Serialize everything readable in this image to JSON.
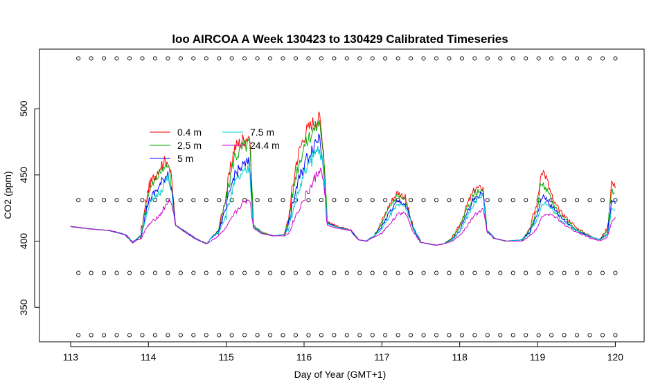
{
  "chart_data": {
    "type": "line",
    "title": "loo AIRCOA A  Week 130423 to 130429  Calibrated Timeseries",
    "xlabel": "Day of Year (GMT+1)",
    "ylabel": "CO2 (ppm)",
    "xlim": [
      112.6,
      120.37
    ],
    "ylim": [
      324,
      545
    ],
    "x_ticks": [
      "113",
      "114",
      "115",
      "116",
      "117",
      "118",
      "119",
      "120"
    ],
    "y_ticks": [
      "350",
      "400",
      "450",
      "500"
    ],
    "legend_position": "top-left",
    "series": [
      {
        "name": "0.4 m",
        "color": "#ff0000",
        "x": [
          113.0,
          113.3,
          113.5,
          113.7,
          113.8,
          113.9,
          114.0,
          114.15,
          114.25,
          114.3,
          114.35,
          114.45,
          114.6,
          114.75,
          114.8,
          114.9,
          115.0,
          115.1,
          115.2,
          115.3,
          115.35,
          115.45,
          115.6,
          115.75,
          115.8,
          115.9,
          116.0,
          116.1,
          116.2,
          116.25,
          116.3,
          116.4,
          116.6,
          116.7,
          116.8,
          116.9,
          117.0,
          117.1,
          117.2,
          117.3,
          117.4,
          117.5,
          117.7,
          117.8,
          117.9,
          118.0,
          118.1,
          118.2,
          118.3,
          118.35,
          118.45,
          118.6,
          118.8,
          118.9,
          119.0,
          119.05,
          119.1,
          119.2,
          119.3,
          119.5,
          119.7,
          119.8,
          119.9,
          119.95,
          120.0
        ],
        "values": [
          411,
          409,
          408,
          405,
          399,
          404,
          440,
          457,
          462,
          445,
          412,
          408,
          402,
          398,
          402,
          408,
          435,
          470,
          476,
          480,
          412,
          407,
          404,
          405,
          418,
          460,
          480,
          489,
          493,
          470,
          415,
          412,
          408,
          401,
          400,
          404,
          415,
          428,
          437,
          433,
          410,
          399,
          397,
          398,
          402,
          412,
          428,
          440,
          440,
          408,
          402,
          400,
          401,
          410,
          430,
          455,
          450,
          430,
          422,
          410,
          403,
          401,
          410,
          445,
          440
        ]
      },
      {
        "name": "2.5 m",
        "color": "#00aa00",
        "x": [
          113.0,
          113.3,
          113.5,
          113.7,
          113.8,
          113.9,
          114.0,
          114.15,
          114.25,
          114.3,
          114.35,
          114.45,
          114.6,
          114.75,
          114.8,
          114.9,
          115.0,
          115.1,
          115.2,
          115.3,
          115.35,
          115.45,
          115.6,
          115.75,
          115.8,
          115.9,
          116.0,
          116.1,
          116.2,
          116.25,
          116.3,
          116.4,
          116.6,
          116.7,
          116.8,
          116.9,
          117.0,
          117.1,
          117.2,
          117.3,
          117.4,
          117.5,
          117.7,
          117.8,
          117.9,
          118.0,
          118.1,
          118.2,
          118.3,
          118.35,
          118.45,
          118.6,
          118.8,
          118.9,
          119.0,
          119.05,
          119.1,
          119.2,
          119.3,
          119.5,
          119.7,
          119.8,
          119.9,
          119.95,
          119.99
        ],
        "values": [
          411,
          409,
          408,
          405,
          399,
          404,
          437,
          452,
          458,
          442,
          412,
          408,
          402,
          398,
          402,
          408,
          432,
          463,
          470,
          474,
          412,
          407,
          404,
          405,
          416,
          452,
          472,
          482,
          490,
          466,
          414,
          411,
          408,
          401,
          400,
          404,
          413,
          426,
          435,
          431,
          410,
          399,
          397,
          398,
          402,
          410,
          425,
          437,
          437,
          408,
          402,
          400,
          401,
          408,
          425,
          445,
          440,
          428,
          420,
          409,
          403,
          401,
          408,
          440,
          436
        ]
      },
      {
        "name": "5 m",
        "color": "#0000ff",
        "x": [
          113.0,
          113.3,
          113.5,
          113.7,
          113.8,
          113.9,
          114.0,
          114.15,
          114.25,
          114.3,
          114.35,
          114.45,
          114.6,
          114.75,
          114.8,
          114.9,
          115.0,
          115.1,
          115.2,
          115.3,
          115.35,
          115.45,
          115.6,
          115.75,
          115.8,
          115.9,
          116.0,
          116.1,
          116.2,
          116.25,
          116.3,
          116.4,
          116.6,
          116.7,
          116.8,
          116.9,
          117.0,
          117.1,
          117.2,
          117.3,
          117.4,
          117.5,
          117.7,
          117.8,
          117.9,
          118.0,
          118.1,
          118.2,
          118.3,
          118.35,
          118.45,
          118.6,
          118.8,
          118.9,
          119.0,
          119.05,
          119.1,
          119.2,
          119.3,
          119.5,
          119.7,
          119.8,
          119.9,
          119.95,
          120.0
        ],
        "values": [
          411,
          409,
          408,
          405,
          399,
          404,
          430,
          442,
          452,
          438,
          412,
          408,
          402,
          398,
          402,
          407,
          425,
          450,
          456,
          460,
          411,
          406,
          404,
          405,
          412,
          440,
          458,
          470,
          480,
          458,
          414,
          411,
          408,
          401,
          400,
          404,
          411,
          422,
          430,
          428,
          410,
          399,
          397,
          398,
          401,
          408,
          422,
          433,
          436,
          408,
          402,
          400,
          401,
          407,
          420,
          433,
          433,
          425,
          418,
          408,
          403,
          401,
          406,
          430,
          428
        ]
      },
      {
        "name": "7.5 m",
        "color": "#00cccc",
        "x": [
          113.0,
          113.3,
          113.5,
          113.7,
          113.8,
          113.9,
          114.0,
          114.15,
          114.25,
          114.3,
          114.35,
          114.45,
          114.6,
          114.75,
          114.8,
          114.9,
          115.0,
          115.1,
          115.2,
          115.3,
          115.35,
          115.45,
          115.6,
          115.75,
          115.8,
          115.9,
          116.0,
          116.1,
          116.2,
          116.25,
          116.3,
          116.4,
          116.6,
          116.7,
          116.8,
          116.9,
          117.0,
          117.1,
          117.2,
          117.3,
          117.4,
          117.5,
          117.7,
          117.8,
          117.9,
          118.0,
          118.1,
          118.2,
          118.3,
          118.35,
          118.45,
          118.6,
          118.8,
          118.9,
          119.0,
          119.05,
          119.1,
          119.2,
          119.3,
          119.5,
          119.7,
          119.8,
          119.9,
          119.95,
          120.0
        ],
        "values": [
          411,
          409,
          408,
          405,
          399,
          404,
          426,
          438,
          448,
          435,
          412,
          408,
          402,
          398,
          402,
          407,
          420,
          443,
          450,
          455,
          411,
          406,
          404,
          405,
          410,
          432,
          450,
          462,
          472,
          452,
          413,
          411,
          408,
          401,
          400,
          404,
          409,
          419,
          427,
          426,
          410,
          399,
          397,
          398,
          401,
          407,
          419,
          430,
          434,
          408,
          402,
          400,
          401,
          406,
          417,
          428,
          429,
          423,
          416,
          408,
          403,
          401,
          405,
          425,
          423
        ]
      },
      {
        "name": "24.4 m",
        "color": "#cc00cc",
        "x": [
          113.0,
          113.3,
          113.5,
          113.7,
          113.8,
          113.9,
          114.0,
          114.15,
          114.25,
          114.3,
          114.35,
          114.45,
          114.6,
          114.75,
          114.8,
          114.9,
          115.0,
          115.1,
          115.2,
          115.3,
          115.35,
          115.45,
          115.6,
          115.75,
          115.8,
          115.9,
          116.0,
          116.1,
          116.2,
          116.25,
          116.3,
          116.4,
          116.6,
          116.7,
          116.8,
          116.9,
          117.0,
          117.1,
          117.2,
          117.3,
          117.4,
          117.5,
          117.7,
          117.8,
          117.9,
          118.0,
          118.1,
          118.2,
          118.3,
          118.35,
          118.45,
          118.6,
          118.8,
          118.9,
          119.0,
          119.05,
          119.1,
          119.2,
          119.3,
          119.5,
          119.7,
          119.8,
          119.9,
          119.95,
          120.0
        ],
        "values": [
          411,
          409,
          408,
          405,
          399,
          402,
          412,
          420,
          430,
          428,
          412,
          408,
          402,
          398,
          400,
          404,
          410,
          420,
          428,
          432,
          410,
          406,
          404,
          404,
          406,
          420,
          432,
          442,
          455,
          445,
          412,
          410,
          408,
          401,
          400,
          403,
          406,
          413,
          420,
          422,
          408,
          399,
          397,
          398,
          400,
          404,
          412,
          420,
          425,
          407,
          402,
          400,
          400,
          404,
          410,
          418,
          420,
          420,
          414,
          407,
          402,
          400,
          403,
          415,
          418
        ]
      }
    ],
    "marker_rows": [
      {
        "y": 538,
        "count": 43
      },
      {
        "y": 431,
        "count": 43
      },
      {
        "y": 376,
        "count": 43
      },
      {
        "y": 329,
        "count": 43
      }
    ],
    "marker_x_range": [
      113.1,
      120.0
    ]
  }
}
